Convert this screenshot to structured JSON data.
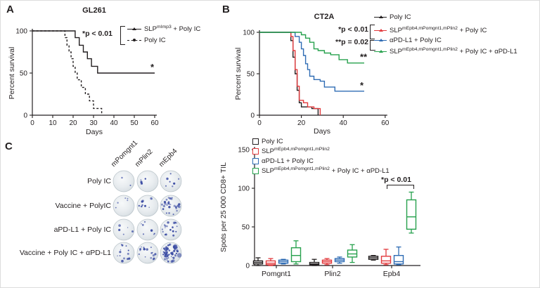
{
  "colors": {
    "black": "#231f20",
    "red": "#e23a3d",
    "blue": "#2f6cb4",
    "green": "#27a14d",
    "well_spot": "#3a4ba3",
    "well_rim": "#b9c3c9"
  },
  "panelA": {
    "label": "A",
    "title": "GL261",
    "ylabel": "Percent survival",
    "xlabel": "Days",
    "pvalue": "*p < 0.01",
    "legend": [
      {
        "pre": "SLP",
        "sup": "mImp3",
        "post": " + Poly IC",
        "color": "#231f20"
      },
      {
        "pre": "Poly IC",
        "sup": "",
        "post": "",
        "color": "#231f20"
      }
    ]
  },
  "panelB": {
    "label": "B",
    "title": "CT2A",
    "ylabel": "Percent survival",
    "xlabel": "Days",
    "pvalue1": "*p < 0.01",
    "pvalue2": "**p = 0.02",
    "legend": [
      {
        "pre": "Poly IC",
        "sup": "",
        "post": "",
        "color": "#231f20"
      },
      {
        "pre": "SLP",
        "sup": "mEpb4,mPomgnt1,mPlin2",
        "post": " + Poly IC",
        "color": "#e23a3d"
      },
      {
        "pre": "αPD-L1 + Poly IC",
        "sup": "",
        "post": "",
        "color": "#2f6cb4"
      },
      {
        "pre": "SLP",
        "sup": "mEpb4,mPomgnt1,mPlin2",
        "post": " + Poly IC + αPD-L1",
        "color": "#27a14d"
      }
    ]
  },
  "panelC": {
    "label": "C",
    "col_headers": [
      "mPomgnt1",
      "mPlin2",
      "mEpb4"
    ],
    "row_labels": [
      "Poly IC",
      "Vaccine + PolyIC",
      "aPD-L1 + Poly IC",
      "Vaccine + Poly IC + αPD-L1"
    ]
  },
  "panelD": {
    "ylabel": "Spots per 25 000 CD8+ TIL",
    "pvalue": "*p < 0.01",
    "legend": [
      {
        "pre": "Poly IC",
        "sup": "",
        "post": "",
        "color": "#231f20"
      },
      {
        "pre": "SLP",
        "sup": "mEpb4,mPomgnt1,mPlin2",
        "post": "",
        "color": "#e23a3d"
      },
      {
        "pre": "αPD-L1 + Poly IC",
        "sup": "",
        "post": "",
        "color": "#2f6cb4"
      },
      {
        "pre": "SLP",
        "sup": "mEpb4,mPomgnt1,mPlin2",
        "post": " + Poly IC + αPD-L1",
        "color": "#27a14d"
      }
    ]
  },
  "chart_data": [
    {
      "id": "gl261_survival",
      "type": "line",
      "subtype": "kaplan-meier",
      "title": "GL261",
      "xlabel": "Days",
      "ylabel": "Percent survival",
      "xlim": [
        0,
        60
      ],
      "ylim": [
        0,
        100
      ],
      "xticks": [
        0,
        10,
        20,
        30,
        40,
        50,
        60
      ],
      "yticks": [
        0,
        50,
        100
      ],
      "annotation": "*p < 0.01",
      "series": [
        {
          "name": "SLP mImp3 + Poly IC",
          "color": "#231f20",
          "dash": "solid",
          "end_marker": "*",
          "points": [
            [
              0,
              100
            ],
            [
              21,
              100
            ],
            [
              21,
              92
            ],
            [
              23,
              92
            ],
            [
              23,
              83
            ],
            [
              25,
              83
            ],
            [
              25,
              75
            ],
            [
              27,
              75
            ],
            [
              27,
              67
            ],
            [
              29,
              67
            ],
            [
              29,
              58
            ],
            [
              32,
              58
            ],
            [
              32,
              50
            ],
            [
              60,
              50
            ]
          ]
        },
        {
          "name": "Poly IC",
          "color": "#231f20",
          "dash": "dashed",
          "end_marker": "",
          "points": [
            [
              0,
              100
            ],
            [
              16,
              100
            ],
            [
              16,
              92
            ],
            [
              17,
              92
            ],
            [
              17,
              83
            ],
            [
              18,
              83
            ],
            [
              18,
              75
            ],
            [
              19,
              75
            ],
            [
              19,
              67
            ],
            [
              20,
              67
            ],
            [
              20,
              58
            ],
            [
              21,
              58
            ],
            [
              21,
              50
            ],
            [
              22,
              50
            ],
            [
              22,
              42
            ],
            [
              24,
              42
            ],
            [
              24,
              33
            ],
            [
              26,
              33
            ],
            [
              26,
              25
            ],
            [
              28,
              25
            ],
            [
              28,
              17
            ],
            [
              30,
              17
            ],
            [
              30,
              8
            ],
            [
              34,
              8
            ],
            [
              34,
              0
            ]
          ]
        }
      ]
    },
    {
      "id": "ct2a_survival",
      "type": "line",
      "subtype": "kaplan-meier",
      "title": "CT2A",
      "xlabel": "Days",
      "ylabel": "Percent survival",
      "xlim": [
        0,
        60
      ],
      "ylim": [
        0,
        100
      ],
      "xticks": [
        0,
        20,
        40,
        60
      ],
      "yticks": [
        0,
        50,
        100
      ],
      "annotations": [
        "*p < 0.01",
        "**p = 0.02"
      ],
      "series": [
        {
          "name": "Poly IC",
          "color": "#231f20",
          "dash": "solid",
          "end_marker": "",
          "points": [
            [
              0,
              100
            ],
            [
              15,
              100
            ],
            [
              15,
              90
            ],
            [
              16,
              90
            ],
            [
              16,
              70
            ],
            [
              17,
              70
            ],
            [
              17,
              50
            ],
            [
              18,
              50
            ],
            [
              18,
              30
            ],
            [
              19,
              30
            ],
            [
              19,
              15
            ],
            [
              20,
              15
            ],
            [
              20,
              10
            ],
            [
              25,
              10
            ],
            [
              25,
              8
            ],
            [
              28,
              8
            ],
            [
              28,
              0
            ]
          ]
        },
        {
          "name": "SLP mEpb4,mPomgnt1,mPlin2 + Poly IC",
          "color": "#e23a3d",
          "dash": "solid",
          "end_marker": "",
          "points": [
            [
              0,
              100
            ],
            [
              15,
              100
            ],
            [
              15,
              95
            ],
            [
              16,
              95
            ],
            [
              16,
              78
            ],
            [
              17,
              78
            ],
            [
              17,
              55
            ],
            [
              18,
              55
            ],
            [
              18,
              35
            ],
            [
              19,
              35
            ],
            [
              19,
              18
            ],
            [
              21,
              18
            ],
            [
              21,
              15
            ],
            [
              23,
              15
            ],
            [
              23,
              10
            ],
            [
              26,
              10
            ],
            [
              26,
              8
            ],
            [
              29,
              8
            ],
            [
              29,
              0
            ]
          ]
        },
        {
          "name": "αPD-L1 + Poly IC",
          "color": "#2f6cb4",
          "dash": "solid",
          "end_marker": "*",
          "points": [
            [
              0,
              100
            ],
            [
              17,
              100
            ],
            [
              17,
              95
            ],
            [
              19,
              95
            ],
            [
              19,
              88
            ],
            [
              20,
              88
            ],
            [
              20,
              80
            ],
            [
              21,
              80
            ],
            [
              21,
              72
            ],
            [
              22,
              72
            ],
            [
              22,
              62
            ],
            [
              23,
              62
            ],
            [
              23,
              55
            ],
            [
              24,
              55
            ],
            [
              24,
              47
            ],
            [
              26,
              47
            ],
            [
              26,
              43
            ],
            [
              29,
              43
            ],
            [
              29,
              41
            ],
            [
              31,
              41
            ],
            [
              31,
              34
            ],
            [
              36,
              34
            ],
            [
              36,
              29
            ],
            [
              41,
              29
            ],
            [
              50,
              29
            ]
          ]
        },
        {
          "name": "SLP mEpb4,mPomgnt1,mPlin2 + Poly IC + αPD-L1",
          "color": "#27a14d",
          "dash": "solid",
          "end_marker": "**",
          "points": [
            [
              0,
              100
            ],
            [
              20,
              100
            ],
            [
              20,
              97
            ],
            [
              22,
              97
            ],
            [
              22,
              93
            ],
            [
              24,
              93
            ],
            [
              24,
              88
            ],
            [
              26,
              88
            ],
            [
              26,
              80
            ],
            [
              28,
              80
            ],
            [
              28,
              78
            ],
            [
              31,
              78
            ],
            [
              31,
              75
            ],
            [
              34,
              75
            ],
            [
              34,
              73
            ],
            [
              38,
              73
            ],
            [
              38,
              67
            ],
            [
              42,
              67
            ],
            [
              42,
              63
            ],
            [
              46,
              63
            ],
            [
              50,
              63
            ]
          ]
        }
      ]
    },
    {
      "id": "elispot_wells",
      "type": "table",
      "columns": [
        "mPomgnt1",
        "mPlin2",
        "mEpb4"
      ],
      "rows": [
        "Poly IC",
        "Vaccine + PolyIC",
        "aPD-L1 + Poly IC",
        "Vaccine + Poly IC + αPD-L1"
      ],
      "spot_counts": [
        [
          2,
          4,
          7
        ],
        [
          5,
          9,
          26
        ],
        [
          5,
          8,
          19
        ],
        [
          13,
          16,
          58
        ]
      ]
    },
    {
      "id": "cd8_til_elispot",
      "type": "box",
      "ylabel": "Spots per 25 000 CD8+ TIL",
      "ylim": [
        0,
        150
      ],
      "yticks": [
        0,
        50,
        100,
        150
      ],
      "categories": [
        "Pomgnt1",
        "Plin2",
        "Epb4"
      ],
      "annotation": {
        "text": "*p < 0.01",
        "category": "Epb4",
        "between": [
          "αPD-L1 + Poly IC",
          "SLP mEpb4,mPomgnt1,mPlin2 + Poly IC + αPD-L1"
        ]
      },
      "groups": [
        {
          "name": "Poly IC",
          "color": "#231f20",
          "stats": [
            [
              0,
              2,
              4,
              6,
              10
            ],
            [
              0,
              1,
              2,
              4,
              8
            ],
            [
              7,
              8,
              10,
              12,
              13
            ]
          ]
        },
        {
          "name": "SLP mEpb4,mPomgnt1,mPlin2",
          "color": "#e23a3d",
          "stats": [
            [
              0,
              1,
              3,
              6,
              9
            ],
            [
              1,
              3,
              5,
              7,
              9
            ],
            [
              1,
              3,
              6,
              12,
              21
            ]
          ]
        },
        {
          "name": "αPD-L1 + Poly IC",
          "color": "#2f6cb4",
          "stats": [
            [
              2,
              3,
              5,
              7,
              8
            ],
            [
              3,
              5,
              7,
              9,
              11
            ],
            [
              1,
              2,
              5,
              13,
              24
            ]
          ]
        },
        {
          "name": "SLP mEpb4,mPomgnt1,mPlin2 + Poly IC + αPD-L1",
          "color": "#27a14d",
          "stats": [
            [
              2,
              5,
              13,
              23,
              32
            ],
            [
              4,
              11,
              15,
              20,
              27
            ],
            [
              42,
              47,
              63,
              85,
              95
            ]
          ]
        }
      ]
    }
  ]
}
